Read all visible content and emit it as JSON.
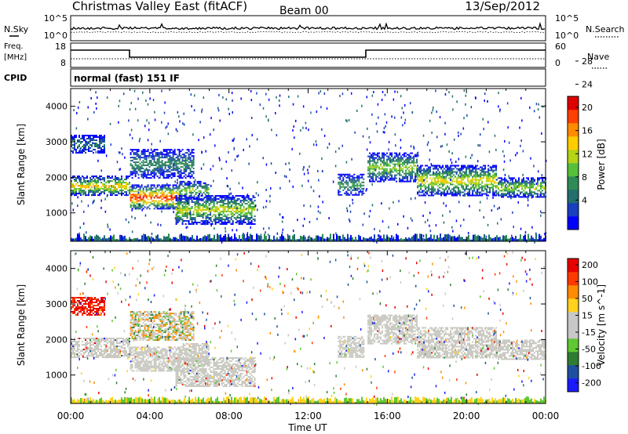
{
  "header": {
    "radar": "Christmas Valley East (fitACF)",
    "beam": "Beam 00",
    "date": "13/Sep/2012"
  },
  "panels": {
    "nsky": {
      "left_label": "N.Sky",
      "right_label": "N.Search",
      "left_ticks": [
        "10^5",
        "10^0"
      ],
      "right_ticks": [
        "10^5",
        "10^0"
      ]
    },
    "freq": {
      "left_label_1": "Freq.",
      "left_label_2": "[MHz]",
      "right_label": "Nave",
      "left_ticks": [
        "18",
        "8"
      ],
      "right_ticks": [
        "60",
        "0"
      ]
    },
    "cpid": {
      "label": "CPID",
      "mode": "normal (fast) 151 IF"
    }
  },
  "colors": {
    "power": [
      "#0000ff",
      "#1a3fbf",
      "#236e6e",
      "#2e8b57",
      "#57c03a",
      "#b5d317",
      "#ffcc00",
      "#ff8c00",
      "#ff4000",
      "#e00000"
    ],
    "velocity": [
      "#1a1aff",
      "#1f4fa0",
      "#2e7d32",
      "#5fc832",
      "#c8c8c8",
      "#c8c8c8",
      "#ffd21e",
      "#ff8c00",
      "#ff3a00",
      "#e80000"
    ],
    "velocity_gray": "#c8c8c0"
  },
  "chart_data": [
    {
      "type": "heatmap",
      "ylabel": "Slant Range [km]",
      "ylim": [
        200,
        4500
      ],
      "yticks": [
        "1000",
        "2000",
        "3000",
        "4000"
      ],
      "colorbar_label": "Power [dB]",
      "colorbar_ticks": [
        "4",
        "8",
        "12",
        "16",
        "20",
        "24",
        "28"
      ],
      "bands": [
        {
          "t0": 0.0,
          "t1": 3.0,
          "y0": 1500,
          "y1": 2050,
          "peak": 0.7
        },
        {
          "t0": 0.0,
          "t1": 1.7,
          "y0": 2700,
          "y1": 3200,
          "peak": 0.3
        },
        {
          "t0": 3.0,
          "t1": 5.5,
          "y0": 1100,
          "y1": 1800,
          "peak": 0.95
        },
        {
          "t0": 3.0,
          "t1": 6.2,
          "y0": 2000,
          "y1": 2800,
          "peak": 0.35
        },
        {
          "t0": 5.5,
          "t1": 7.0,
          "y0": 1400,
          "y1": 1900,
          "peak": 0.5
        },
        {
          "t0": 5.3,
          "t1": 9.3,
          "y0": 700,
          "y1": 1500,
          "peak": 0.6
        },
        {
          "t0": 13.5,
          "t1": 14.8,
          "y0": 1500,
          "y1": 2100,
          "peak": 0.4
        },
        {
          "t0": 15.0,
          "t1": 17.5,
          "y0": 1900,
          "y1": 2700,
          "peak": 0.55
        },
        {
          "t0": 17.5,
          "t1": 21.5,
          "y0": 1500,
          "y1": 2350,
          "peak": 0.65
        },
        {
          "t0": 21.5,
          "t1": 24.0,
          "y0": 1450,
          "y1": 2000,
          "peak": 0.55
        }
      ]
    },
    {
      "type": "heatmap",
      "xlabel": "Time UT",
      "xlim": [
        0,
        24
      ],
      "xticks": [
        "00:00",
        "04:00",
        "08:00",
        "12:00",
        "16:00",
        "20:00",
        "00:00"
      ],
      "ylabel": "Slant Range [km]",
      "ylim": [
        200,
        4500
      ],
      "yticks": [
        "1000",
        "2000",
        "3000",
        "4000"
      ],
      "colorbar_label": "Velocity [m s^-1]",
      "colorbar_ticks": [
        "200",
        "100",
        "50",
        "15",
        "-15",
        "-50",
        "-100",
        "-200"
      ]
    }
  ]
}
